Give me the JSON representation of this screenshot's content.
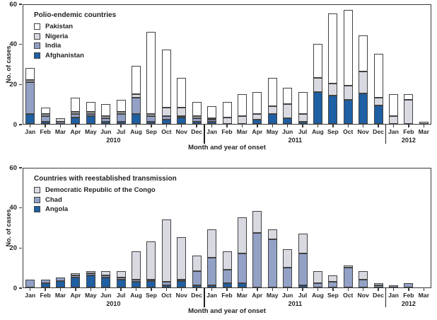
{
  "chart_data": [
    {
      "type": "bar",
      "stacked": true,
      "title": "Polio-endemic countries",
      "ylabel": "No. of cases",
      "xlabel": "Month and year of onset",
      "ylim": [
        0,
        60
      ],
      "yticks": [
        0,
        20,
        40,
        60
      ],
      "grid": false,
      "legend_position": "upper-left-inside",
      "categories": [
        "Jan",
        "Feb",
        "Mar",
        "Apr",
        "May",
        "Jun",
        "Jul",
        "Aug",
        "Sep",
        "Oct",
        "Nov",
        "Dec",
        "Jan",
        "Feb",
        "Mar",
        "Apr",
        "May",
        "Jun",
        "Jul",
        "Aug",
        "Sep",
        "Oct",
        "Nov",
        "Dec",
        "Jan",
        "Feb",
        "Mar"
      ],
      "year_groups": [
        {
          "label": "2010",
          "start": 0,
          "end": 11
        },
        {
          "label": "2011",
          "start": 12,
          "end": 23
        },
        {
          "label": "2012",
          "start": 24,
          "end": 26
        }
      ],
      "separators_after_index": [
        11,
        23
      ],
      "series": [
        {
          "name": "Afghanistan",
          "color": "#1f5fa3",
          "values": [
            5,
            1,
            0,
            3,
            4,
            1,
            1,
            5,
            1,
            2,
            3,
            1,
            1,
            0,
            0,
            2,
            5,
            3,
            1,
            16,
            14,
            12,
            15,
            9,
            0,
            0,
            0
          ]
        },
        {
          "name": "India",
          "color": "#93a1c6",
          "values": [
            16,
            3,
            1,
            2,
            1,
            2,
            4,
            8,
            3,
            2,
            1,
            2,
            1,
            0,
            0,
            0,
            0,
            0,
            0,
            0,
            0,
            0,
            0,
            0,
            0,
            0,
            0
          ]
        },
        {
          "name": "Nigeria",
          "color": "#d8d9e1",
          "values": [
            1,
            1,
            2,
            1,
            1,
            1,
            1,
            2,
            1,
            4,
            4,
            1,
            1,
            3,
            4,
            3,
            4,
            7,
            4,
            7,
            6,
            7,
            11,
            4,
            4,
            12,
            1
          ]
        },
        {
          "name": "Pakistan",
          "color": "#ffffff",
          "values": [
            6,
            3,
            0,
            7,
            5,
            6,
            6,
            14,
            41,
            29,
            15,
            7,
            6,
            8,
            11,
            11,
            14,
            8,
            11,
            17,
            35,
            38,
            18,
            22,
            11,
            3,
            0
          ]
        }
      ],
      "legend_order": [
        "Pakistan",
        "Nigeria",
        "India",
        "Afghanistan"
      ]
    },
    {
      "type": "bar",
      "stacked": true,
      "title": "Countries with reestablished transmission",
      "ylabel": "No. of cases",
      "xlabel": "Month and year of onset",
      "ylim": [
        0,
        60
      ],
      "yticks": [
        0,
        20,
        40,
        60
      ],
      "grid": false,
      "legend_position": "upper-left-inside",
      "categories": [
        "Jan",
        "Feb",
        "Mar",
        "Apr",
        "May",
        "Jun",
        "Jul",
        "Aug",
        "Sep",
        "Oct",
        "Nov",
        "Dec",
        "Jan",
        "Feb",
        "Mar",
        "Apr",
        "May",
        "Jun",
        "Jul",
        "Aug",
        "Sep",
        "Oct",
        "Nov",
        "Dec",
        "Jan",
        "Feb",
        "Mar"
      ],
      "year_groups": [
        {
          "label": "2010",
          "start": 0,
          "end": 11
        },
        {
          "label": "2011",
          "start": 12,
          "end": 23
        },
        {
          "label": "2012",
          "start": 24,
          "end": 26
        }
      ],
      "separators_after_index": [
        11,
        23
      ],
      "series": [
        {
          "name": "Angola",
          "color": "#1f5fa3",
          "values": [
            0,
            2,
            3,
            5,
            6,
            5,
            4,
            3,
            3,
            1,
            3,
            1,
            1,
            2,
            2,
            0,
            0,
            0,
            1,
            0,
            0,
            0,
            0,
            0,
            0,
            0,
            0
          ]
        },
        {
          "name": "Chad",
          "color": "#93a1c6",
          "values": [
            4,
            2,
            2,
            1,
            1,
            1,
            1,
            1,
            1,
            2,
            1,
            7,
            14,
            7,
            15,
            27,
            24,
            10,
            16,
            2,
            3,
            10,
            4,
            1,
            1,
            2,
            0
          ]
        },
        {
          "name": "Democratic Republic of the Congo",
          "color": "#d8d9e1",
          "values": [
            0,
            0,
            0,
            1,
            1,
            2,
            3,
            14,
            19,
            31,
            21,
            8,
            14,
            9,
            18,
            11,
            5,
            9,
            10,
            6,
            3,
            1,
            4,
            1,
            0,
            0,
            0
          ]
        }
      ],
      "legend_order": [
        "Democratic Republic of the Congo",
        "Chad",
        "Angola"
      ]
    }
  ],
  "style": {
    "outline_color": "#424242",
    "axis_color": "#3a3a3a",
    "text_color": "#231f20",
    "background": "#ffffff"
  }
}
